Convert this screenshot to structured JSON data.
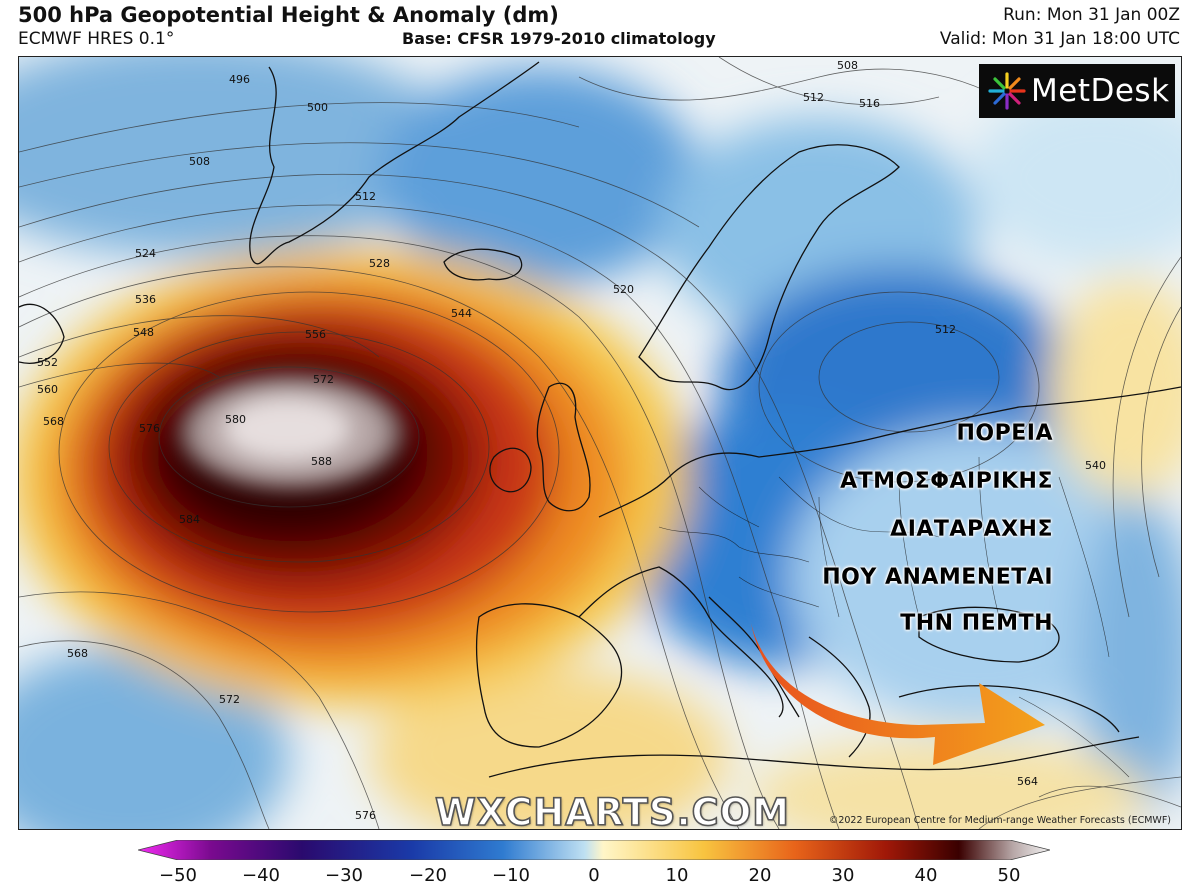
{
  "header": {
    "title": "500 hPa Geopotential Height & Anomaly (dm)",
    "model": "ECMWF HRES 0.1°",
    "base": "Base: CFSR 1979-2010 climatology",
    "run": "Run: Mon 31 Jan 00Z",
    "valid": "Valid: Mon 31 Jan 18:00 UTC"
  },
  "logo": {
    "text": "MetDesk",
    "icon": "metdesk-starburst-icon"
  },
  "annotation": {
    "lines": [
      "ΠΟΡΕΙΑ",
      "ΑΤΜΟΣΦΑΙΡΙΚΗΣ",
      "ΔΙΑΤΑΡΑΧΗΣ",
      "ΠΟΥ ΑΝΑΜΕΝΕΤΑΙ",
      "ΤΗΝ ΠΕΜΤΗ"
    ],
    "arrow_icon": "orange-curved-arrow-icon",
    "arrow_colors": [
      "#e8501e",
      "#f4a21c"
    ]
  },
  "watermark": "WXCHARTS.COM",
  "copyright": "©2022 European Centre for Medium-range Weather Forecasts (ECMWF)",
  "contour_labels": [
    "496",
    "500",
    "508",
    "512",
    "524",
    "528",
    "536",
    "544",
    "548",
    "552",
    "556",
    "560",
    "568",
    "572",
    "576",
    "580",
    "584",
    "588",
    "520",
    "512",
    "516",
    "508",
    "512",
    "540",
    "564",
    "568",
    "572",
    "576"
  ],
  "colorbar": {
    "ticks": [
      "−50",
      "−40",
      "−30",
      "−20",
      "−10",
      "0",
      "10",
      "20",
      "30",
      "40",
      "50"
    ],
    "colors": [
      "#f22af2",
      "#7a0a8f",
      "#2a0a6e",
      "#1a3aa8",
      "#2f7bd0",
      "#bfe0f2",
      "#fff6c8",
      "#f8c440",
      "#e8641a",
      "#a01808",
      "#3a0000",
      "#b8a8a8",
      "#f4f4f4"
    ]
  }
}
